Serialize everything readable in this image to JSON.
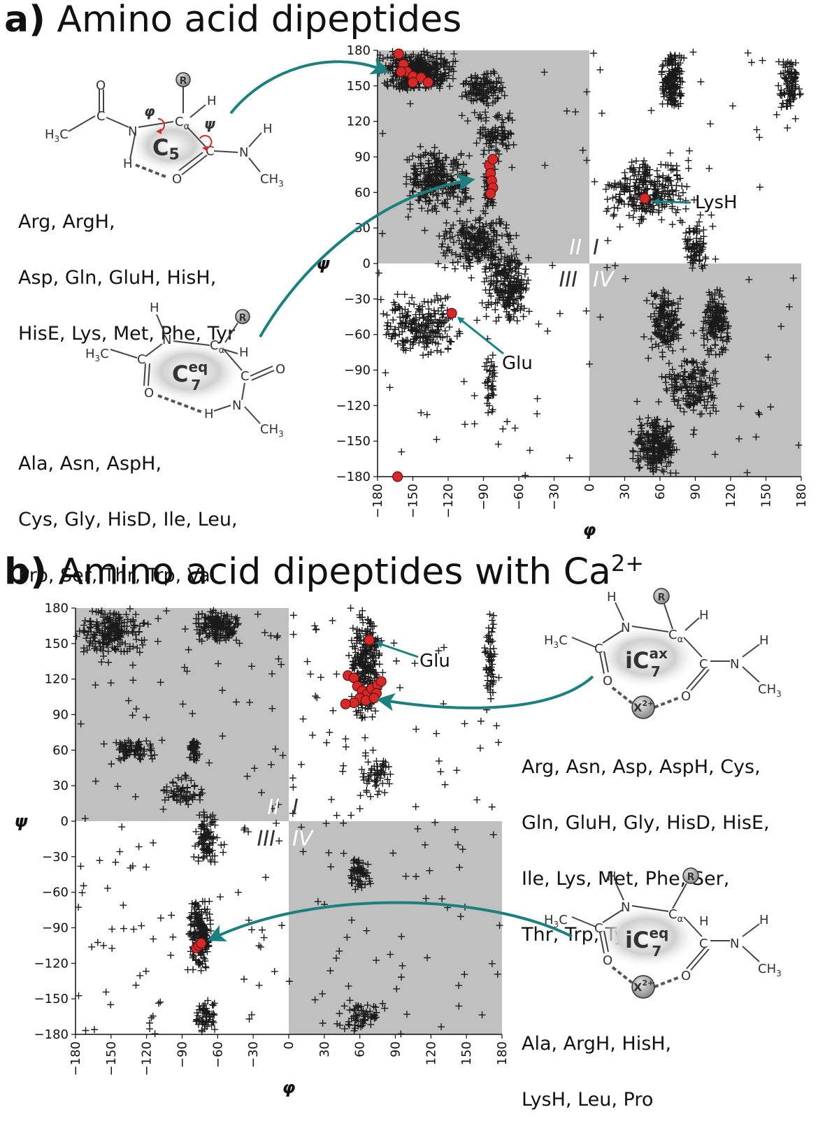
{
  "panel_a": {
    "letter": "a)",
    "title": "Amino acid dipeptides",
    "motif_top": {
      "ring_label": "C",
      "ring_sub": "5",
      "groups": [
        "Arg, ArgH,",
        "Asp, Gln, GluH, HisH,",
        "HisE, Lys, Met, Phe, Tyr"
      ]
    },
    "motif_bottom": {
      "ring_label": "C",
      "ring_sup": "eq",
      "ring_sub": "7",
      "groups": [
        "Ala, Asn, AspH,",
        "Cys, Gly, HisD, Ile, Leu,",
        "Pro, Ser, Thr, Trp, Val"
      ]
    },
    "annotations": {
      "lysh": "LysH",
      "glu": "Glu"
    }
  },
  "panel_b": {
    "letter": "b)",
    "title": "Amino acid dipeptides with Ca",
    "title_sup": "2+",
    "motif_top": {
      "ring_label": "iC",
      "ring_sup": "ax",
      "ring_sub": "7",
      "ion": "X",
      "ion_sup": "2+",
      "groups": [
        "Arg, Asn, Asp, AspH, Cys,",
        "Gln, GluH, Gly, HisD, HisE,",
        "Ile, Lys, Met, Phe, Ser,",
        "Thr, Trp, Tyr, Val"
      ]
    },
    "motif_bottom": {
      "ring_label": "iC",
      "ring_sup": "eq",
      "ring_sub": "7",
      "ion": "X",
      "ion_sup": "2+",
      "groups": [
        "Ala, ArgH, HisH,",
        "LysH, Leu, Pro"
      ]
    },
    "annotations": {
      "glu": "Glu"
    }
  },
  "molecule_labels": {
    "R": "R",
    "N": "N",
    "C": "C",
    "O": "O",
    "H": "H",
    "Ca": "C",
    "Ca_sub": "α",
    "CH3": "CH",
    "CH3_sub": "3",
    "H3C_pre": "H",
    "H3C_post": "C",
    "H3C_sub": "3",
    "phi": "φ",
    "psi": "ψ"
  },
  "chart_data": [
    {
      "type": "scatter",
      "title": "Amino acid dipeptides",
      "xlabel": "φ",
      "ylabel": "ψ",
      "xlim": [
        -180,
        180
      ],
      "ylim": [
        -180,
        180
      ],
      "xticks": [
        "−180",
        "−150",
        "−120",
        "−90",
        "−60",
        "−30",
        "0",
        "30",
        "60",
        "90",
        "120",
        "150",
        "180"
      ],
      "yticks": [
        "180",
        "150",
        "120",
        "90",
        "60",
        "30",
        "0",
        "−30",
        "−60",
        "−90",
        "−120",
        "−150",
        "−180"
      ],
      "quadrants": [
        "II",
        "I",
        "III",
        "IV"
      ],
      "shaded_quadrants": [
        "II",
        "IV"
      ],
      "colors": {
        "shade": "#c0c0c0",
        "cross": "#1a1a1a",
        "highlight": "#d42a2a",
        "arrow": "#1c8080"
      },
      "density_regions": [
        {
          "x": [
            -180,
            -110
          ],
          "y": [
            145,
            180
          ],
          "n": 420
        },
        {
          "x": [
            -110,
            -70
          ],
          "y": [
            130,
            165
          ],
          "n": 120
        },
        {
          "x": [
            -100,
            -60
          ],
          "y": [
            90,
            130
          ],
          "n": 90
        },
        {
          "x": [
            -160,
            -100
          ],
          "y": [
            40,
            100
          ],
          "n": 260
        },
        {
          "x": [
            -130,
            -60
          ],
          "y": [
            -10,
            40
          ],
          "n": 240
        },
        {
          "x": [
            -90,
            -50
          ],
          "y": [
            -50,
            10
          ],
          "n": 220
        },
        {
          "x": [
            -180,
            -110
          ],
          "y": [
            -80,
            -25
          ],
          "n": 220
        },
        {
          "x": [
            -90,
            -80
          ],
          "y": [
            -130,
            -70
          ],
          "n": 40
        },
        {
          "x": [
            -90,
            -80
          ],
          "y": [
            40,
            90
          ],
          "n": 60
        },
        {
          "x": [
            60,
            80
          ],
          "y": [
            130,
            180
          ],
          "n": 180
        },
        {
          "x": [
            10,
            90
          ],
          "y": [
            30,
            90
          ],
          "n": 260
        },
        {
          "x": [
            80,
            100
          ],
          "y": [
            -10,
            40
          ],
          "n": 80
        },
        {
          "x": [
            50,
            80
          ],
          "y": [
            -80,
            -20
          ],
          "n": 160
        },
        {
          "x": [
            95,
            120
          ],
          "y": [
            -80,
            -20
          ],
          "n": 160
        },
        {
          "x": [
            60,
            110
          ],
          "y": [
            -130,
            -80
          ],
          "n": 160
        },
        {
          "x": [
            35,
            75
          ],
          "y": [
            -180,
            -125
          ],
          "n": 220
        },
        {
          "x": [
            160,
            180
          ],
          "y": [
            130,
            175
          ],
          "n": 90
        }
      ],
      "sparse_points": 140,
      "highlighted": [
        {
          "x": -162,
          "y": 177
        },
        {
          "x": -158,
          "y": 168
        },
        {
          "x": -155,
          "y": 162
        },
        {
          "x": -150,
          "y": 158
        },
        {
          "x": -143,
          "y": 157
        },
        {
          "x": -137,
          "y": 153
        },
        {
          "x": -150,
          "y": 153
        },
        {
          "x": -160,
          "y": 162
        },
        {
          "x": -85,
          "y": 83
        },
        {
          "x": -84,
          "y": 76
        },
        {
          "x": -83,
          "y": 70
        },
        {
          "x": -82,
          "y": 64
        },
        {
          "x": -84,
          "y": 59
        },
        {
          "x": -82,
          "y": 88
        },
        {
          "x": 47,
          "y": 55
        },
        {
          "x": -117,
          "y": -42
        },
        {
          "x": -163,
          "y": -180
        }
      ]
    },
    {
      "type": "scatter",
      "title": "Amino acid dipeptides with Ca2+",
      "xlabel": "φ",
      "ylabel": "ψ",
      "xlim": [
        -180,
        180
      ],
      "ylim": [
        -180,
        180
      ],
      "xticks": [
        "−180",
        "−150",
        "−120",
        "−90",
        "−60",
        "−30",
        "0",
        "30",
        "60",
        "90",
        "120",
        "150",
        "180"
      ],
      "yticks": [
        "180",
        "150",
        "120",
        "90",
        "60",
        "30",
        "0",
        "−30",
        "−60",
        "−90",
        "−120",
        "−150",
        "−180"
      ],
      "quadrants": [
        "II",
        "I",
        "III",
        "IV"
      ],
      "shaded_quadrants": [
        "II",
        "IV"
      ],
      "colors": {
        "shade": "#c0c0c0",
        "cross": "#1a1a1a",
        "highlight": "#d42a2a",
        "arrow": "#1c8080"
      },
      "density_regions": [
        {
          "x": [
            -180,
            -120
          ],
          "y": [
            140,
            180
          ],
          "n": 200
        },
        {
          "x": [
            -80,
            -40
          ],
          "y": [
            150,
            180
          ],
          "n": 160
        },
        {
          "x": [
            -150,
            -110
          ],
          "y": [
            50,
            70
          ],
          "n": 80
        },
        {
          "x": [
            -85,
            -75
          ],
          "y": [
            50,
            70
          ],
          "n": 40
        },
        {
          "x": [
            -110,
            -70
          ],
          "y": [
            10,
            40
          ],
          "n": 60
        },
        {
          "x": [
            -80,
            -60
          ],
          "y": [
            -40,
            10
          ],
          "n": 90
        },
        {
          "x": [
            -85,
            -65
          ],
          "y": [
            -130,
            -60
          ],
          "n": 180
        },
        {
          "x": [
            -80,
            -60
          ],
          "y": [
            -180,
            -150
          ],
          "n": 60
        },
        {
          "x": [
            50,
            80
          ],
          "y": [
            80,
            180
          ],
          "n": 260
        },
        {
          "x": [
            60,
            90
          ],
          "y": [
            20,
            60
          ],
          "n": 60
        },
        {
          "x": [
            50,
            70
          ],
          "y": [
            -60,
            -30
          ],
          "n": 60
        },
        {
          "x": [
            40,
            80
          ],
          "y": [
            -180,
            -150
          ],
          "n": 60
        },
        {
          "x": [
            165,
            175
          ],
          "y": [
            90,
            180
          ],
          "n": 60
        }
      ],
      "sparse_points": 260,
      "highlighted": [
        {
          "x": 68,
          "y": 153
        },
        {
          "x": 50,
          "y": 123
        },
        {
          "x": 55,
          "y": 121
        },
        {
          "x": 58,
          "y": 114
        },
        {
          "x": 62,
          "y": 110
        },
        {
          "x": 66,
          "y": 107
        },
        {
          "x": 70,
          "y": 112
        },
        {
          "x": 75,
          "y": 115
        },
        {
          "x": 74,
          "y": 108
        },
        {
          "x": 60,
          "y": 104
        },
        {
          "x": 55,
          "y": 100
        },
        {
          "x": 65,
          "y": 102
        },
        {
          "x": 48,
          "y": 99
        },
        {
          "x": 78,
          "y": 118
        },
        {
          "x": 72,
          "y": 104
        },
        {
          "x": -78,
          "y": -107
        },
        {
          "x": -76,
          "y": -105
        },
        {
          "x": -74,
          "y": -103
        }
      ]
    }
  ]
}
